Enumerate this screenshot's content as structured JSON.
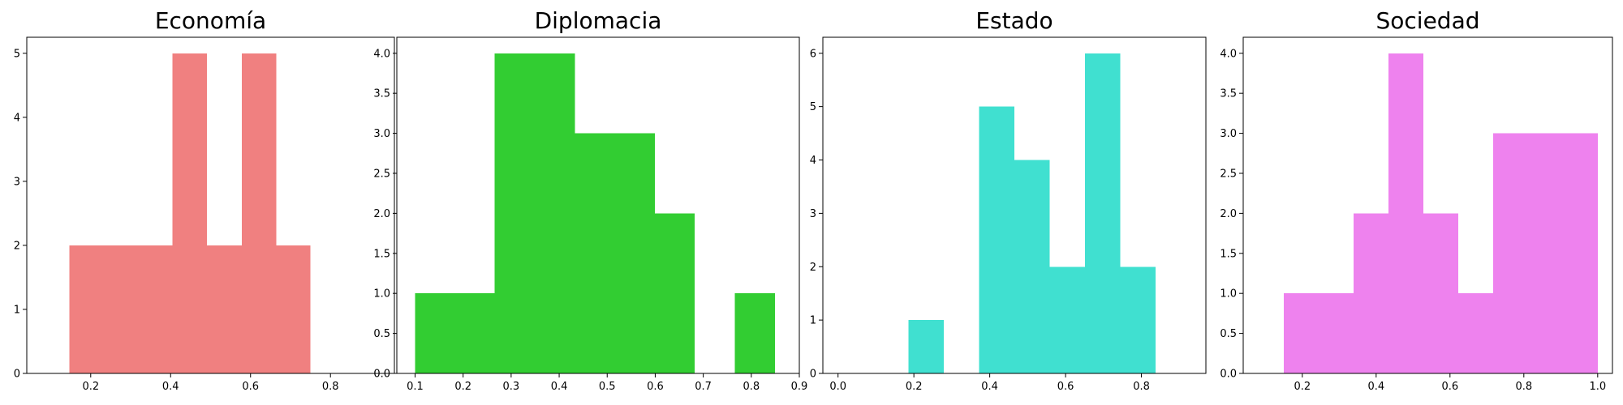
{
  "chart_data": [
    {
      "type": "bar",
      "title": "Economía",
      "color": "#f08080",
      "xlim": [
        0.04,
        0.96
      ],
      "ylim": [
        0,
        5.25
      ],
      "xticks": [
        0.2,
        0.4,
        0.6,
        0.8
      ],
      "xtick_labels": [
        "0.2",
        "0.4",
        "0.6",
        "0.8"
      ],
      "yticks": [
        0,
        1,
        2,
        3,
        4,
        5
      ],
      "ytick_labels": [
        "0",
        "1",
        "2",
        "3",
        "4",
        "5"
      ],
      "bars": [
        {
          "x0": 0.147,
          "x1": 0.233,
          "value": 2
        },
        {
          "x0": 0.233,
          "x1": 0.319,
          "value": 2
        },
        {
          "x0": 0.319,
          "x1": 0.405,
          "value": 2
        },
        {
          "x0": 0.405,
          "x1": 0.491,
          "value": 5
        },
        {
          "x0": 0.491,
          "x1": 0.578,
          "value": 2
        },
        {
          "x0": 0.578,
          "x1": 0.664,
          "value": 5
        },
        {
          "x0": 0.664,
          "x1": 0.75,
          "value": 2
        }
      ]
    },
    {
      "type": "bar",
      "title": "Diplomacia",
      "color": "#32cd32",
      "xlim": [
        0.062,
        0.9
      ],
      "ylim": [
        0,
        4.2
      ],
      "xticks": [
        0.1,
        0.2,
        0.3,
        0.4,
        0.5,
        0.6,
        0.7,
        0.8,
        0.9
      ],
      "xtick_labels": [
        "0.1",
        "0.2",
        "0.3",
        "0.4",
        "0.5",
        "0.6",
        "0.7",
        "0.8",
        "0.9"
      ],
      "yticks": [
        0,
        0.5,
        1,
        1.5,
        2,
        2.5,
        3,
        3.5,
        4
      ],
      "ytick_labels": [
        "0.0",
        "0.5",
        "1.0",
        "1.5",
        "2.0",
        "2.5",
        "3.0",
        "3.5",
        "4.0"
      ],
      "bars": [
        {
          "x0": 0.1,
          "x1": 0.183,
          "value": 1
        },
        {
          "x0": 0.183,
          "x1": 0.266,
          "value": 1
        },
        {
          "x0": 0.266,
          "x1": 0.35,
          "value": 4
        },
        {
          "x0": 0.35,
          "x1": 0.433,
          "value": 4
        },
        {
          "x0": 0.433,
          "x1": 0.516,
          "value": 3
        },
        {
          "x0": 0.516,
          "x1": 0.599,
          "value": 3
        },
        {
          "x0": 0.599,
          "x1": 0.682,
          "value": 2
        },
        {
          "x0": 0.682,
          "x1": 0.766,
          "value": 0
        },
        {
          "x0": 0.766,
          "x1": 0.849,
          "value": 1
        }
      ]
    },
    {
      "type": "bar",
      "title": "Estado",
      "color": "#40e0d0",
      "xlim": [
        -0.04,
        0.97
      ],
      "ylim": [
        0,
        6.3
      ],
      "xticks": [
        0.0,
        0.2,
        0.4,
        0.6,
        0.8
      ],
      "xtick_labels": [
        "0.0",
        "0.2",
        "0.4",
        "0.6",
        "0.8"
      ],
      "yticks": [
        0,
        1,
        2,
        3,
        4,
        5,
        6
      ],
      "ytick_labels": [
        "0",
        "1",
        "2",
        "3",
        "4",
        "5",
        "6"
      ],
      "bars": [
        {
          "x0": 0.0,
          "x1": 0.093,
          "value": 0
        },
        {
          "x0": 0.093,
          "x1": 0.186,
          "value": 0
        },
        {
          "x0": 0.186,
          "x1": 0.279,
          "value": 1
        },
        {
          "x0": 0.279,
          "x1": 0.372,
          "value": 0
        },
        {
          "x0": 0.372,
          "x1": 0.465,
          "value": 5
        },
        {
          "x0": 0.465,
          "x1": 0.558,
          "value": 4
        },
        {
          "x0": 0.558,
          "x1": 0.651,
          "value": 2
        },
        {
          "x0": 0.651,
          "x1": 0.744,
          "value": 6
        },
        {
          "x0": 0.744,
          "x1": 0.837,
          "value": 2
        }
      ]
    },
    {
      "type": "bar",
      "title": "Sociedad",
      "color": "#ee82ee",
      "xlim": [
        0.04,
        1.04
      ],
      "ylim": [
        0,
        4.2
      ],
      "xticks": [
        0.2,
        0.4,
        0.6,
        0.8,
        1.0
      ],
      "xtick_labels": [
        "0.2",
        "0.4",
        "0.6",
        "0.8",
        "1.0"
      ],
      "yticks": [
        0,
        0.5,
        1,
        1.5,
        2,
        2.5,
        3,
        3.5,
        4
      ],
      "ytick_labels": [
        "0.0",
        "0.5",
        "1.0",
        "1.5",
        "2.0",
        "2.5",
        "3.0",
        "3.5",
        "4.0"
      ],
      "bars": [
        {
          "x0": 0.15,
          "x1": 0.244,
          "value": 1
        },
        {
          "x0": 0.244,
          "x1": 0.339,
          "value": 1
        },
        {
          "x0": 0.339,
          "x1": 0.433,
          "value": 2
        },
        {
          "x0": 0.433,
          "x1": 0.528,
          "value": 4
        },
        {
          "x0": 0.528,
          "x1": 0.622,
          "value": 2
        },
        {
          "x0": 0.622,
          "x1": 0.717,
          "value": 1
        },
        {
          "x0": 0.717,
          "x1": 0.811,
          "value": 3
        },
        {
          "x0": 0.811,
          "x1": 0.906,
          "value": 3
        },
        {
          "x0": 0.906,
          "x1": 1.0,
          "value": 3
        }
      ]
    }
  ]
}
